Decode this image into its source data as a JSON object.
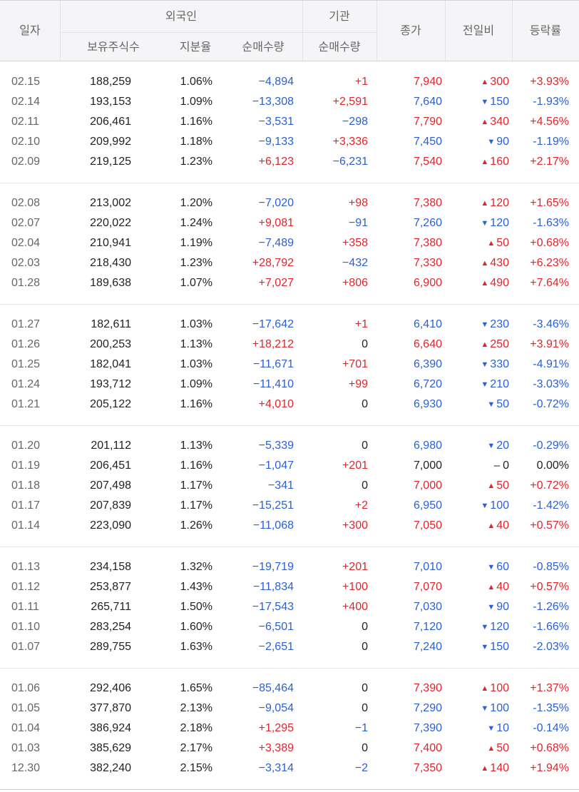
{
  "header": {
    "date": "일자",
    "foreign": "외국인",
    "institution": "기관",
    "holdings": "보유주식수",
    "ratio": "지분율",
    "foreign_net": "순매수량",
    "inst_net": "순매수량",
    "close": "종가",
    "change": "전일비",
    "rate": "등락률"
  },
  "colors": {
    "up": "#e0262d",
    "down": "#2c60d2",
    "flat": "#222222"
  },
  "groups": [
    [
      {
        "date": "02.15",
        "holdings": "188,259",
        "ratio": "1.06%",
        "fnet": "−4,894",
        "inet": "+1",
        "close": "7,940",
        "dir": "up",
        "change": "300",
        "rate": "+3.93%"
      },
      {
        "date": "02.14",
        "holdings": "193,153",
        "ratio": "1.09%",
        "fnet": "−13,308",
        "inet": "+2,591",
        "close": "7,640",
        "dir": "down",
        "change": "150",
        "rate": "-1.93%"
      },
      {
        "date": "02.11",
        "holdings": "206,461",
        "ratio": "1.16%",
        "fnet": "−3,531",
        "inet": "−298",
        "close": "7,790",
        "dir": "up",
        "change": "340",
        "rate": "+4.56%"
      },
      {
        "date": "02.10",
        "holdings": "209,992",
        "ratio": "1.18%",
        "fnet": "−9,133",
        "inet": "+3,336",
        "close": "7,450",
        "dir": "down",
        "change": "90",
        "rate": "-1.19%"
      },
      {
        "date": "02.09",
        "holdings": "219,125",
        "ratio": "1.23%",
        "fnet": "+6,123",
        "inet": "−6,231",
        "close": "7,540",
        "dir": "up",
        "change": "160",
        "rate": "+2.17%"
      }
    ],
    [
      {
        "date": "02.08",
        "holdings": "213,002",
        "ratio": "1.20%",
        "fnet": "−7,020",
        "inet": "+98",
        "close": "7,380",
        "dir": "up",
        "change": "120",
        "rate": "+1.65%"
      },
      {
        "date": "02.07",
        "holdings": "220,022",
        "ratio": "1.24%",
        "fnet": "+9,081",
        "inet": "−91",
        "close": "7,260",
        "dir": "down",
        "change": "120",
        "rate": "-1.63%"
      },
      {
        "date": "02.04",
        "holdings": "210,941",
        "ratio": "1.19%",
        "fnet": "−7,489",
        "inet": "+358",
        "close": "7,380",
        "dir": "up",
        "change": "50",
        "rate": "+0.68%"
      },
      {
        "date": "02.03",
        "holdings": "218,430",
        "ratio": "1.23%",
        "fnet": "+28,792",
        "inet": "−432",
        "close": "7,330",
        "dir": "up",
        "change": "430",
        "rate": "+6.23%"
      },
      {
        "date": "01.28",
        "holdings": "189,638",
        "ratio": "1.07%",
        "fnet": "+7,027",
        "inet": "+806",
        "close": "6,900",
        "dir": "up",
        "change": "490",
        "rate": "+7.64%"
      }
    ],
    [
      {
        "date": "01.27",
        "holdings": "182,611",
        "ratio": "1.03%",
        "fnet": "−17,642",
        "inet": "+1",
        "close": "6,410",
        "dir": "down",
        "change": "230",
        "rate": "-3.46%"
      },
      {
        "date": "01.26",
        "holdings": "200,253",
        "ratio": "1.13%",
        "fnet": "+18,212",
        "inet": "0",
        "close": "6,640",
        "dir": "up",
        "change": "250",
        "rate": "+3.91%"
      },
      {
        "date": "01.25",
        "holdings": "182,041",
        "ratio": "1.03%",
        "fnet": "−11,671",
        "inet": "+701",
        "close": "6,390",
        "dir": "down",
        "change": "330",
        "rate": "-4.91%"
      },
      {
        "date": "01.24",
        "holdings": "193,712",
        "ratio": "1.09%",
        "fnet": "−11,410",
        "inet": "+99",
        "close": "6,720",
        "dir": "down",
        "change": "210",
        "rate": "-3.03%"
      },
      {
        "date": "01.21",
        "holdings": "205,122",
        "ratio": "1.16%",
        "fnet": "+4,010",
        "inet": "0",
        "close": "6,930",
        "dir": "down",
        "change": "50",
        "rate": "-0.72%"
      }
    ],
    [
      {
        "date": "01.20",
        "holdings": "201,112",
        "ratio": "1.13%",
        "fnet": "−5,339",
        "inet": "0",
        "close": "6,980",
        "dir": "down",
        "change": "20",
        "rate": "-0.29%"
      },
      {
        "date": "01.19",
        "holdings": "206,451",
        "ratio": "1.16%",
        "fnet": "−1,047",
        "inet": "+201",
        "close": "7,000",
        "dir": "flat",
        "change": "0",
        "rate": "0.00%"
      },
      {
        "date": "01.18",
        "holdings": "207,498",
        "ratio": "1.17%",
        "fnet": "−341",
        "inet": "0",
        "close": "7,000",
        "dir": "up",
        "change": "50",
        "rate": "+0.72%"
      },
      {
        "date": "01.17",
        "holdings": "207,839",
        "ratio": "1.17%",
        "fnet": "−15,251",
        "inet": "+2",
        "close": "6,950",
        "dir": "down",
        "change": "100",
        "rate": "-1.42%"
      },
      {
        "date": "01.14",
        "holdings": "223,090",
        "ratio": "1.26%",
        "fnet": "−11,068",
        "inet": "+300",
        "close": "7,050",
        "dir": "up",
        "change": "40",
        "rate": "+0.57%"
      }
    ],
    [
      {
        "date": "01.13",
        "holdings": "234,158",
        "ratio": "1.32%",
        "fnet": "−19,719",
        "inet": "+201",
        "close": "7,010",
        "dir": "down",
        "change": "60",
        "rate": "-0.85%"
      },
      {
        "date": "01.12",
        "holdings": "253,877",
        "ratio": "1.43%",
        "fnet": "−11,834",
        "inet": "+100",
        "close": "7,070",
        "dir": "up",
        "change": "40",
        "rate": "+0.57%"
      },
      {
        "date": "01.11",
        "holdings": "265,711",
        "ratio": "1.50%",
        "fnet": "−17,543",
        "inet": "+400",
        "close": "7,030",
        "dir": "down",
        "change": "90",
        "rate": "-1.26%"
      },
      {
        "date": "01.10",
        "holdings": "283,254",
        "ratio": "1.60%",
        "fnet": "−6,501",
        "inet": "0",
        "close": "7,120",
        "dir": "down",
        "change": "120",
        "rate": "-1.66%"
      },
      {
        "date": "01.07",
        "holdings": "289,755",
        "ratio": "1.63%",
        "fnet": "−2,651",
        "inet": "0",
        "close": "7,240",
        "dir": "down",
        "change": "150",
        "rate": "-2.03%"
      }
    ],
    [
      {
        "date": "01.06",
        "holdings": "292,406",
        "ratio": "1.65%",
        "fnet": "−85,464",
        "inet": "0",
        "close": "7,390",
        "dir": "up",
        "change": "100",
        "rate": "+1.37%"
      },
      {
        "date": "01.05",
        "holdings": "377,870",
        "ratio": "2.13%",
        "fnet": "−9,054",
        "inet": "0",
        "close": "7,290",
        "dir": "down",
        "change": "100",
        "rate": "-1.35%"
      },
      {
        "date": "01.04",
        "holdings": "386,924",
        "ratio": "2.18%",
        "fnet": "+1,295",
        "inet": "−1",
        "close": "7,390",
        "dir": "down",
        "change": "10",
        "rate": "-0.14%"
      },
      {
        "date": "01.03",
        "holdings": "385,629",
        "ratio": "2.17%",
        "fnet": "+3,389",
        "inet": "0",
        "close": "7,400",
        "dir": "up",
        "change": "50",
        "rate": "+0.68%"
      },
      {
        "date": "12.30",
        "holdings": "382,240",
        "ratio": "2.15%",
        "fnet": "−3,314",
        "inet": "−2",
        "close": "7,350",
        "dir": "up",
        "change": "140",
        "rate": "+1.94%"
      }
    ]
  ]
}
